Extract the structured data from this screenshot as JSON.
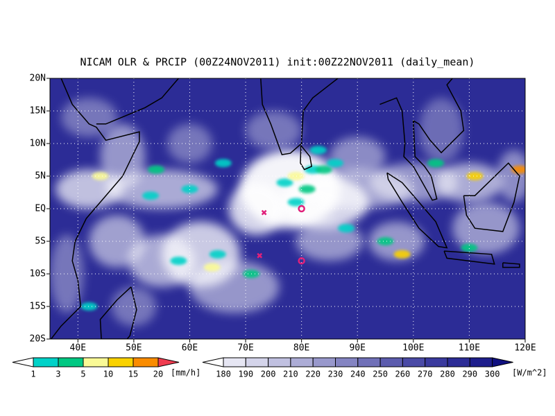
{
  "title": "NICAM OLR & PRCIP (00Z24NOV2011) init:00Z22NOV2011 (daily_mean)",
  "lon_lim": [
    35,
    120
  ],
  "lat_lim": [
    -20,
    20
  ],
  "lon_ticks": [
    {
      "value": 40,
      "label": "40E"
    },
    {
      "value": 50,
      "label": "50E"
    },
    {
      "value": 60,
      "label": "60E"
    },
    {
      "value": 70,
      "label": "70E"
    },
    {
      "value": 80,
      "label": "80E"
    },
    {
      "value": 90,
      "label": "90E"
    },
    {
      "value": 100,
      "label": "100E"
    },
    {
      "value": 110,
      "label": "110E"
    },
    {
      "value": 120,
      "label": "120E"
    }
  ],
  "lat_ticks": [
    {
      "value": 20,
      "label": "20N"
    },
    {
      "value": 15,
      "label": "15N"
    },
    {
      "value": 10,
      "label": "10N"
    },
    {
      "value": 5,
      "label": "5N"
    },
    {
      "value": 0,
      "label": "EQ"
    },
    {
      "value": -5,
      "label": "5S"
    },
    {
      "value": -10,
      "label": "10S"
    },
    {
      "value": -15,
      "label": "15S"
    },
    {
      "value": -20,
      "label": "20S"
    }
  ],
  "precip_colorbar": {
    "levels": [
      1,
      3,
      5,
      10,
      15,
      20
    ],
    "unit": "[mm/h]",
    "colors": [
      "#ffffff",
      "#00d2c8",
      "#00c882",
      "#fafa96",
      "#fad200",
      "#fa8c00",
      "#f03c50"
    ]
  },
  "olr_colorbar": {
    "levels": [
      180,
      190,
      200,
      210,
      220,
      230,
      240,
      250,
      260,
      270,
      280,
      290,
      300
    ],
    "unit": "[W/m^2]",
    "colors": [
      "#ffffff",
      "#e6e6f3",
      "#d4d4ea",
      "#c0c0e0",
      "#acacd6",
      "#9898cc",
      "#8484c2",
      "#7070b8",
      "#5c5cae",
      "#4a4aa6",
      "#3a3a9e",
      "#2c2c96",
      "#1e1e8c",
      "#101080"
    ]
  }
}
